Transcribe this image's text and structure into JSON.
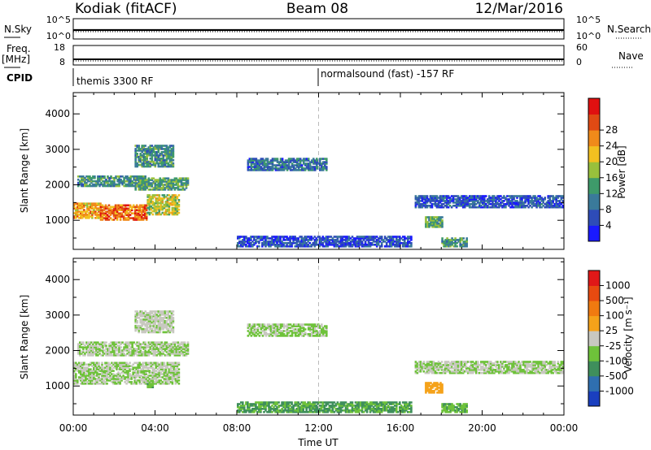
{
  "header": {
    "station": "Kodiak (fitACF)",
    "beam": "Beam 08",
    "date": "12/Mar/2016"
  },
  "top_panels": {
    "nsky_label": "N.Sky",
    "nsky_ticks": [
      "10^5",
      "10^0"
    ],
    "nsearch_label": "N.Search",
    "nsearch_ticks": [
      "10^5",
      "10^0"
    ],
    "freq_label": "Freq.",
    "freq_unit": "[MHz]",
    "freq_ticks": [
      "18",
      "8"
    ],
    "nave_label": "Nave",
    "nave_ticks": [
      "60",
      "0"
    ],
    "cpid_label": "CPID",
    "cpid_modes": [
      {
        "label": "themis 3300 RF",
        "start_hour": 0
      },
      {
        "label": "normalsound (fast) -157 RF",
        "start_hour": 12
      }
    ]
  },
  "x_axis": {
    "label": "Time UT",
    "ticks": [
      "00:00",
      "04:00",
      "08:00",
      "12:00",
      "16:00",
      "20:00",
      "00:00"
    ],
    "tick_hours": [
      0,
      4,
      8,
      12,
      16,
      20,
      24
    ]
  },
  "chart_data": [
    {
      "type": "heatmap",
      "panel": "power",
      "ylabel": "Slant Range [km]",
      "ylim": [
        180,
        4600
      ],
      "yticks": [
        1000,
        2000,
        3000,
        4000
      ],
      "xlim": [
        0,
        24
      ],
      "colorbar": {
        "label": "Power [dB]",
        "ticks": [
          "4",
          "8",
          "12",
          "16",
          "20",
          "24",
          "28"
        ],
        "colors": [
          "#1a1aff",
          "#2e4cb8",
          "#3a7a9a",
          "#3e9a6a",
          "#98c03c",
          "#f2c020",
          "#f08a1a",
          "#e04a14",
          "#e01010"
        ]
      },
      "regions": [
        {
          "t0": 0.0,
          "t1": 1.3,
          "r0": 1050,
          "r1": 1500,
          "level": 0.68
        },
        {
          "t0": 1.3,
          "t1": 3.6,
          "r0": 1000,
          "r1": 1450,
          "level": 0.82
        },
        {
          "t0": 3.6,
          "t1": 5.2,
          "r0": 1150,
          "r1": 1700,
          "level": 0.55
        },
        {
          "t0": 0.2,
          "t1": 3.5,
          "r0": 1950,
          "r1": 2250,
          "level": 0.32
        },
        {
          "t0": 3.0,
          "t1": 5.6,
          "r0": 1850,
          "r1": 2200,
          "level": 0.38
        },
        {
          "t0": 3.0,
          "t1": 4.9,
          "r0": 2500,
          "r1": 3100,
          "level": 0.32
        },
        {
          "t0": 8.5,
          "t1": 12.4,
          "r0": 2400,
          "r1": 2750,
          "level": 0.22
        },
        {
          "t0": 16.7,
          "t1": 23.9,
          "r0": 1350,
          "r1": 1700,
          "level": 0.14
        },
        {
          "t0": 17.2,
          "t1": 18.0,
          "r0": 800,
          "r1": 1100,
          "level": 0.38
        },
        {
          "t0": 18.0,
          "t1": 19.2,
          "r0": 250,
          "r1": 480,
          "level": 0.35
        },
        {
          "t0": 8.0,
          "t1": 16.5,
          "r0": 250,
          "r1": 550,
          "level": 0.12
        }
      ]
    },
    {
      "type": "heatmap",
      "panel": "velocity",
      "ylabel": "Slant Range [km]",
      "ylim": [
        180,
        4600
      ],
      "yticks": [
        1000,
        2000,
        3000,
        4000
      ],
      "xlim": [
        0,
        24
      ],
      "colorbar": {
        "label": "Velocity [m s⁻¹]",
        "ticks": [
          "1000",
          "500",
          "100",
          "25",
          "-25",
          "-100",
          "-500",
          "-1000"
        ],
        "colors": [
          "#1a3fbf",
          "#2f6fb0",
          "#3f8f5c",
          "#6ec23a",
          "#c8c8c0",
          "#f5a21a",
          "#f07a10",
          "#e84a10",
          "#e01818"
        ]
      },
      "regions": [
        {
          "t0": 0.0,
          "t1": 5.2,
          "r0": 1050,
          "r1": 1650,
          "level": 0.44
        },
        {
          "t0": 0.2,
          "t1": 5.6,
          "r0": 1850,
          "r1": 2250,
          "level": 0.44
        },
        {
          "t0": 3.0,
          "t1": 4.9,
          "r0": 2500,
          "r1": 3100,
          "level": 0.46
        },
        {
          "t0": 8.5,
          "t1": 12.4,
          "r0": 2400,
          "r1": 2750,
          "level": 0.42
        },
        {
          "t0": 16.7,
          "t1": 23.9,
          "r0": 1350,
          "r1": 1700,
          "level": 0.44
        },
        {
          "t0": 17.2,
          "t1": 18.0,
          "r0": 800,
          "r1": 1100,
          "level": 0.62
        },
        {
          "t0": 3.6,
          "t1": 3.9,
          "r0": 950,
          "r1": 1150,
          "level": 0.33
        },
        {
          "t0": 18.0,
          "t1": 19.2,
          "r0": 250,
          "r1": 480,
          "level": 0.33
        },
        {
          "t0": 8.0,
          "t1": 16.5,
          "r0": 250,
          "r1": 550,
          "level": 0.3
        }
      ]
    }
  ]
}
